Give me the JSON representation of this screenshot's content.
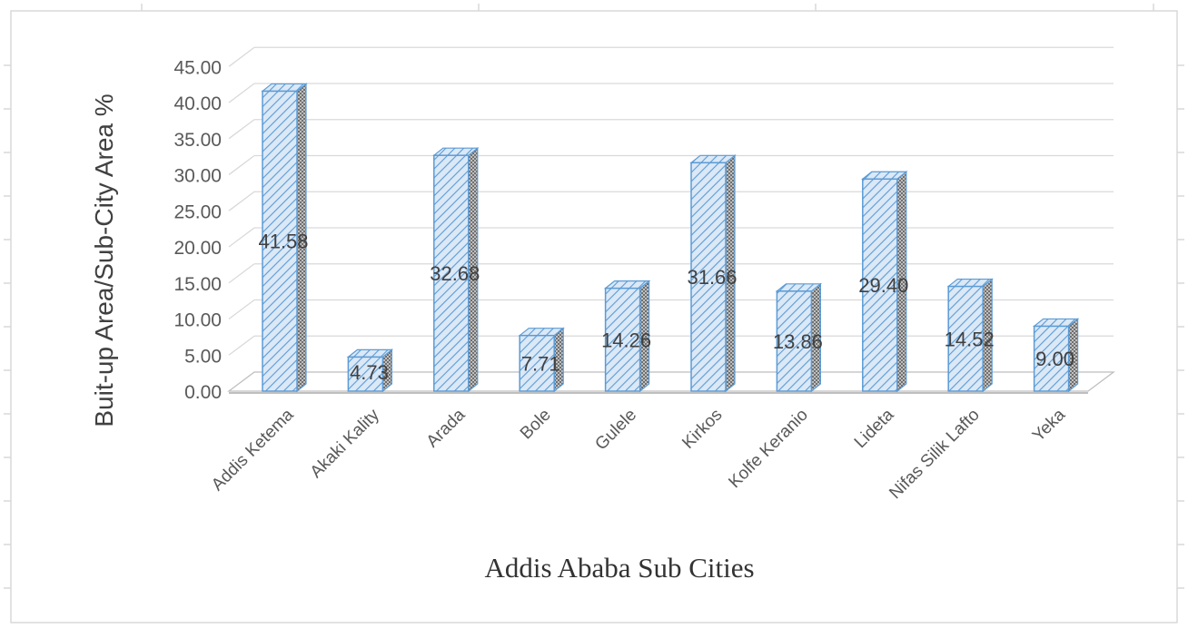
{
  "chart_data": {
    "type": "bar",
    "categories": [
      "Addis Ketema",
      "Akaki Kality",
      "Arada",
      "Bole",
      "Gulele",
      "Kirkos",
      "Kolfe Keranio",
      "Lideta",
      "Nifas Silik Lafto",
      "Yeka"
    ],
    "values": [
      41.58,
      4.73,
      32.68,
      7.71,
      14.26,
      31.66,
      13.86,
      29.4,
      14.52,
      9.0
    ],
    "data_labels": [
      "41.58",
      "4.73",
      "32.68",
      "7.71",
      "14.26",
      "31.66",
      "13.86",
      "29.40",
      "14.52",
      "9.00"
    ],
    "y_ticks": [
      "0.00",
      "5.00",
      "10.00",
      "15.00",
      "20.00",
      "25.00",
      "30.00",
      "35.00",
      "40.00",
      "45.00"
    ],
    "title": "",
    "xlabel": "Addis Ababa Sub Cities",
    "ylabel": "Buit-up Area/Sub-City Area %",
    "ylim": [
      0,
      45
    ],
    "grid": true,
    "style": "3d-column-hatched",
    "colors": {
      "bar_fill": "#dbe8f6",
      "bar_hatch": "#5b9bd5",
      "bar_edge": "#5b9bd5",
      "side": "#7f7f7f",
      "grid": "#d9d9d9"
    }
  }
}
